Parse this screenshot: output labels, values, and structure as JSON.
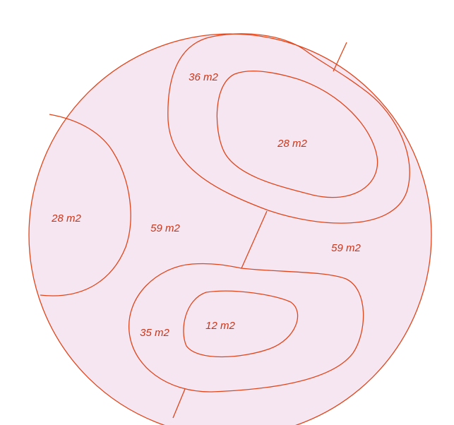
{
  "regions": [
    {
      "label": "36 m2"
    },
    {
      "label": "28 m2"
    },
    {
      "label": "28 m2"
    },
    {
      "label": "59 m2"
    },
    {
      "label": "59 m2"
    },
    {
      "label": "35 m2"
    },
    {
      "label": "12 m2"
    }
  ]
}
